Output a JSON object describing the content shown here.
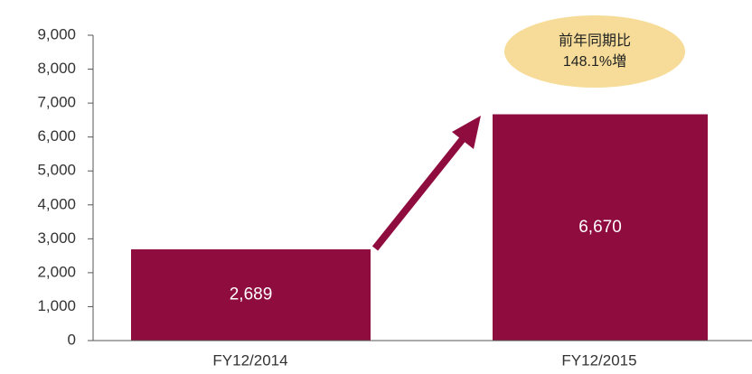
{
  "chart_data": {
    "type": "bar",
    "categories": [
      "FY12/2014",
      "FY12/2015"
    ],
    "values": [
      2689,
      6670
    ],
    "value_labels": [
      "2,689",
      "6,670"
    ],
    "color": "#8f0c3f",
    "ylim": [
      0,
      9000
    ],
    "yticks": [
      0,
      {
        "value": 1000,
        "label": "1,000"
      },
      {
        "value": 2000,
        "label": "2,000"
      },
      {
        "value": 3000,
        "label": "3,000"
      },
      {
        "value": 4000,
        "label": "4,000"
      },
      {
        "value": 5000,
        "label": "5,000"
      },
      {
        "value": 6000,
        "label": "6,000"
      },
      {
        "value": 7000,
        "label": "7,000"
      },
      {
        "value": 8000,
        "label": "8,000"
      },
      {
        "value": 9000,
        "label": "9,000"
      }
    ],
    "grid": false,
    "annotation": [
      "前年同期比",
      "148.1%増"
    ]
  }
}
